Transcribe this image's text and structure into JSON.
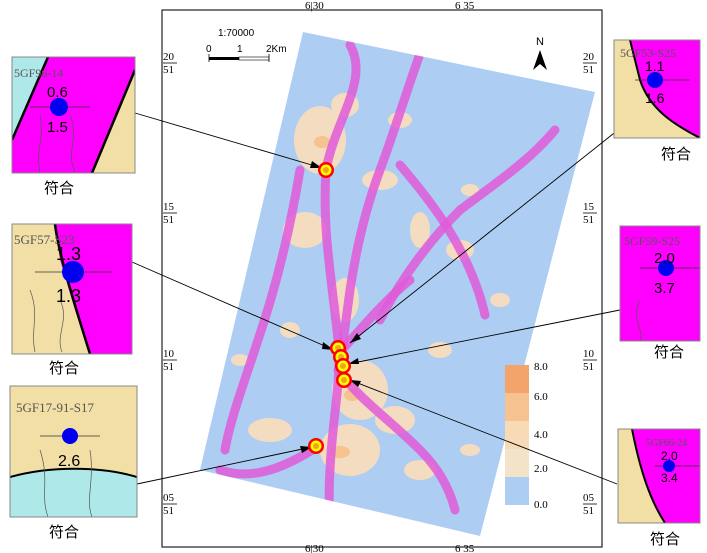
{
  "map": {
    "scale_label": "1:70000",
    "scale_ticks": [
      "0",
      "1",
      "2Km"
    ],
    "north_label": "N",
    "top_ticks": [
      "6|30",
      "6 35"
    ],
    "bottom_ticks": [
      "6|30",
      "6 35"
    ],
    "left_ticks": [
      {
        "top": "20",
        "bottom": "51"
      },
      {
        "top": "15",
        "bottom": "51"
      },
      {
        "top": "10",
        "bottom": "51"
      },
      {
        "top": "05",
        "bottom": "51"
      }
    ],
    "right_ticks": [
      {
        "top": "20",
        "bottom": "51"
      },
      {
        "top": "15",
        "bottom": "51"
      },
      {
        "top": "10",
        "bottom": "51"
      },
      {
        "top": "05",
        "bottom": "51"
      }
    ],
    "legend": {
      "labels": [
        "8.0",
        "6.0",
        "4.0",
        "2.0",
        "0.0"
      ],
      "colors": [
        "#f3a46a",
        "#f6c290",
        "#f8dab7",
        "#f3e4c9",
        "#aecdf3"
      ]
    },
    "colors": {
      "background_area": "#aecdf3",
      "anomaly_band": "#e05ad8",
      "prospect_low": "#f3dcc0",
      "point_outer": "#ff0000",
      "point_ring": "#ffff00",
      "point_inner": "#f4a320"
    }
  },
  "insets": [
    {
      "id": "5GF96-14",
      "label": "5GF96-14",
      "top_value": "0.6",
      "bottom_value": "1.5",
      "caption": "符合"
    },
    {
      "id": "5GF57-S23",
      "label": "5GF57-S23",
      "top_value": "1.3",
      "bottom_value": "1.3",
      "caption": "符合"
    },
    {
      "id": "5GF17-91-S17",
      "label": "5GF17-91-S17",
      "top_value": "",
      "bottom_value": "2.6",
      "caption": "符合"
    },
    {
      "id": "5GF53-S25",
      "label": "5GF53-S25",
      "top_value": "1.1",
      "bottom_value": "1.6",
      "caption": "符合"
    },
    {
      "id": "5GF59-S25",
      "label": "5GF59-S25",
      "top_value": "2.0",
      "bottom_value": "3.7",
      "caption": "符合"
    },
    {
      "id": "5GF66-24",
      "label": "5GF66-24",
      "top_value": "2.0",
      "bottom_value": "3.4",
      "caption": "符合"
    }
  ]
}
